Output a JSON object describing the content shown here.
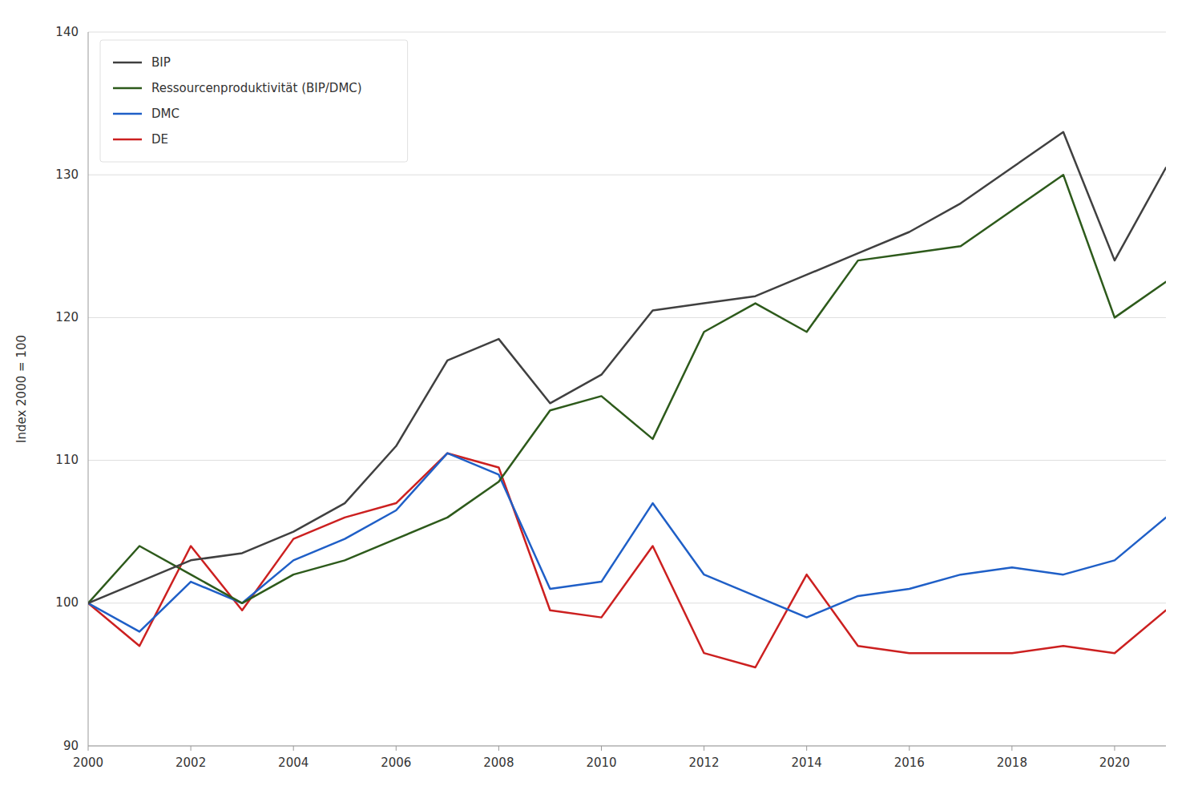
{
  "chart_data": {
    "type": "line",
    "y_label": "Index  2000 = 100",
    "x": [
      2000,
      2001,
      2002,
      2003,
      2004,
      2005,
      2006,
      2007,
      2008,
      2009,
      2010,
      2011,
      2012,
      2013,
      2014,
      2015,
      2016,
      2017,
      2018,
      2019,
      2020,
      2021
    ],
    "series": [
      {
        "name": "BIP",
        "color": "#404040",
        "values": [
          100,
          101.5,
          103.0,
          103.5,
          105.0,
          107.0,
          111.0,
          117.0,
          118.5,
          114.0,
          116.0,
          120.5,
          121.0,
          121.5,
          123.0,
          124.5,
          126.0,
          128.0,
          130.5,
          133.0,
          124.0,
          130.5
        ]
      },
      {
        "name": "Ressourcenproduktivität (BIP/DMC)",
        "color": "#2d5a1b",
        "values": [
          100,
          104.0,
          102.0,
          100.0,
          102.0,
          103.0,
          104.5,
          106.0,
          108.5,
          113.5,
          114.5,
          111.5,
          119.0,
          121.0,
          119.0,
          124.0,
          124.5,
          125.0,
          127.5,
          130.0,
          120.0,
          122.5
        ]
      },
      {
        "name": "DMC",
        "color": "#1f5fc7",
        "values": [
          100,
          98.0,
          101.5,
          100.0,
          103.0,
          104.5,
          106.5,
          110.5,
          109.0,
          101.0,
          101.5,
          107.0,
          102.0,
          100.5,
          99.0,
          100.5,
          101.0,
          102.0,
          102.5,
          102.0,
          103.0,
          106.0
        ]
      },
      {
        "name": "DE",
        "color": "#cc2020",
        "values": [
          100,
          97.0,
          104.0,
          99.5,
          104.5,
          106.0,
          107.0,
          110.5,
          109.5,
          99.5,
          99.0,
          104.0,
          96.5,
          95.5,
          102.0,
          97.0,
          96.5,
          96.5,
          96.5,
          97.0,
          96.5,
          99.5
        ]
      }
    ],
    "xlim": [
      2000,
      2021
    ],
    "xticks": [
      2000,
      2002,
      2004,
      2006,
      2008,
      2010,
      2012,
      2014,
      2016,
      2018,
      2020
    ],
    "ylim": [
      90,
      140
    ],
    "yticks": [
      90,
      100,
      110,
      120,
      130,
      140
    ],
    "grid": true,
    "legend": "upper left"
  }
}
